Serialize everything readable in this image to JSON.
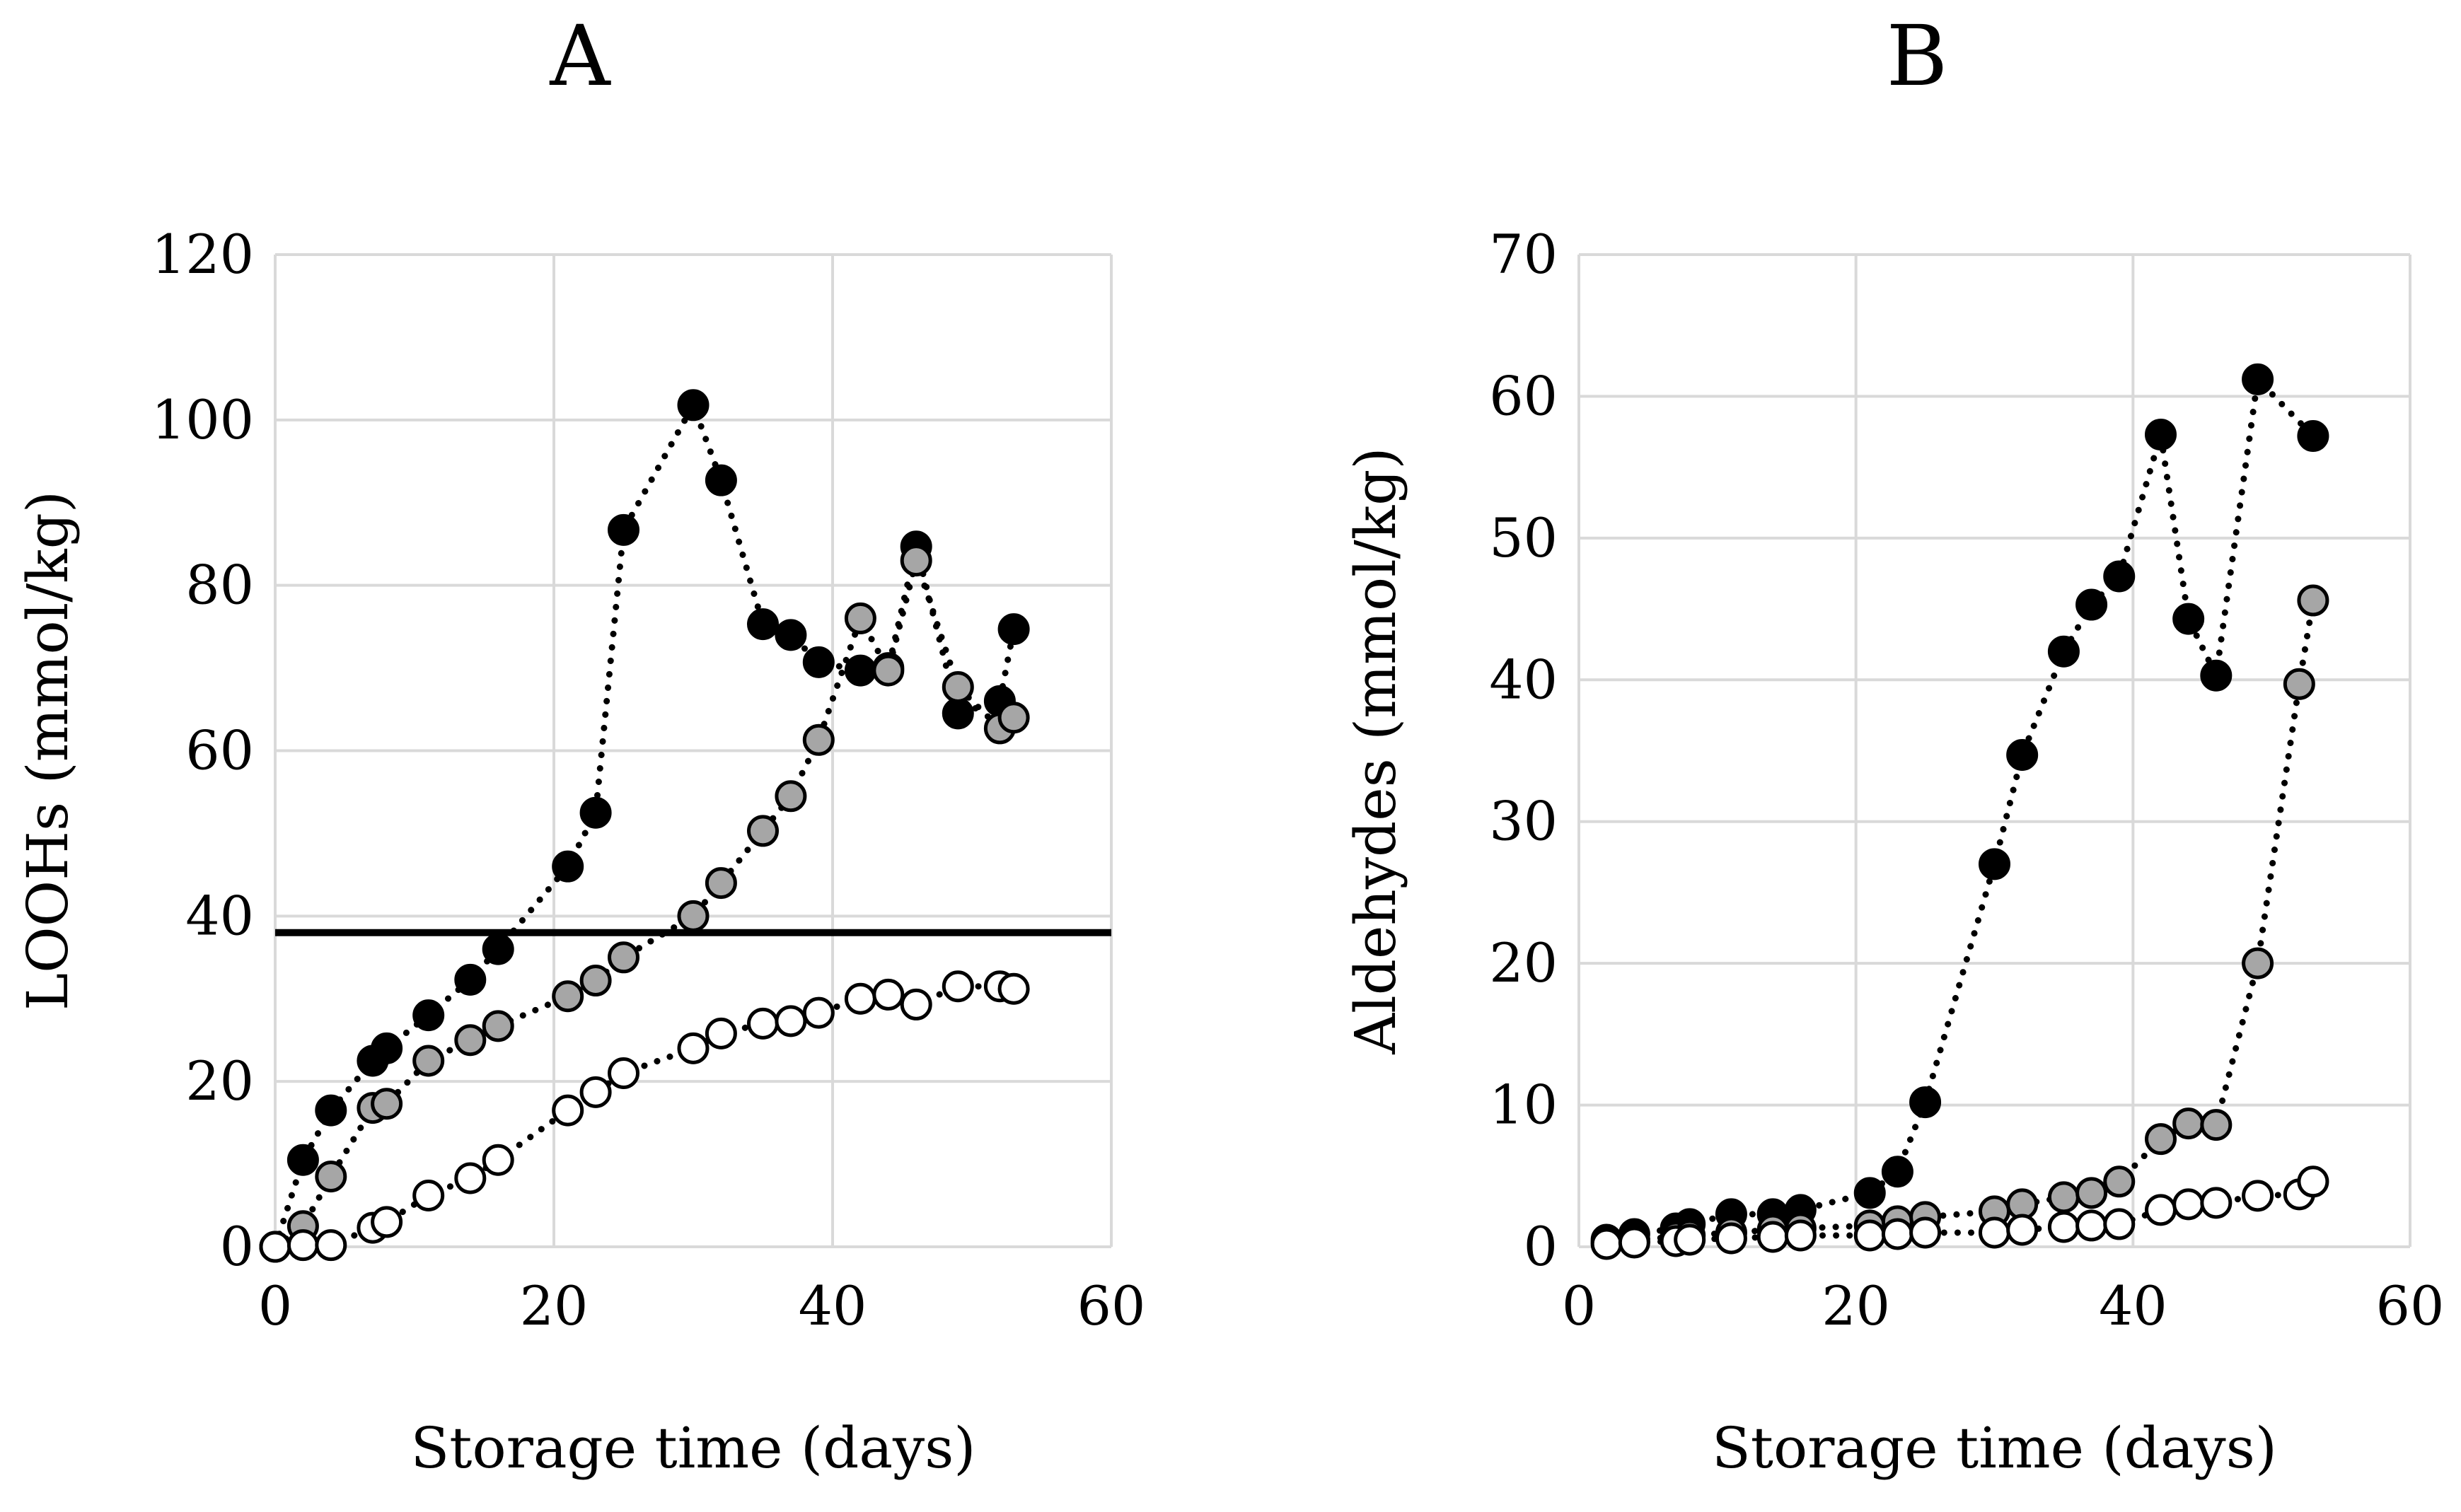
{
  "chart_data": [
    {
      "type": "scatter",
      "title": "A",
      "xlabel": "Storage time (days)",
      "ylabel": "LOOHs (mmol/kg)",
      "xlim": [
        0,
        60
      ],
      "ylim": [
        0,
        120
      ],
      "xticks": [
        0,
        20,
        40,
        60
      ],
      "yticks": [
        0,
        20,
        40,
        60,
        80,
        100,
        120
      ],
      "grid": true,
      "lines": "dotted",
      "reference_line": {
        "y": 38,
        "color": "#000000"
      },
      "series": [
        {
          "marker_fill": "#000000",
          "x": [
            0,
            2,
            4,
            7,
            8,
            11,
            14,
            16,
            21,
            23,
            25,
            30,
            32,
            35,
            37,
            39,
            42,
            44,
            46,
            49,
            52,
            53
          ],
          "y": [
            0,
            10.5,
            16.5,
            22.5,
            24,
            28,
            32.3,
            36,
            46,
            52.5,
            86.7,
            101.8,
            92.7,
            75.3,
            74,
            70.7,
            69.7,
            70,
            84.7,
            64.5,
            66,
            74.7
          ]
        },
        {
          "marker_fill": "#a6a6a6",
          "x": [
            0,
            2,
            4,
            7,
            8,
            11,
            14,
            16,
            21,
            23,
            25,
            30,
            32,
            35,
            37,
            39,
            42,
            44,
            46,
            49,
            52,
            53
          ],
          "y": [
            0,
            2.5,
            8.5,
            16.8,
            17.3,
            22.5,
            25,
            26.7,
            30.3,
            32.2,
            35,
            40,
            44,
            50.3,
            54.5,
            61.3,
            76,
            69.7,
            83,
            67.7,
            62.7,
            64
          ]
        },
        {
          "marker_fill": "#ffffff",
          "x": [
            0,
            2,
            4,
            7,
            8,
            11,
            14,
            16,
            21,
            23,
            25,
            30,
            32,
            35,
            37,
            39,
            42,
            44,
            46,
            49,
            52,
            53
          ],
          "y": [
            0,
            0.2,
            0.2,
            2.3,
            3,
            6.2,
            8.3,
            10.5,
            16.5,
            18.7,
            21,
            24,
            25.8,
            27,
            27.3,
            28.3,
            30,
            30.5,
            29.3,
            31.5,
            31.5,
            31.2
          ]
        }
      ]
    },
    {
      "type": "scatter",
      "title": "B",
      "xlabel": "Storage time (days)",
      "ylabel": "Aldehydes (mmol/kg)",
      "xlim": [
        0,
        60
      ],
      "ylim": [
        0,
        70
      ],
      "xticks": [
        0,
        20,
        40,
        60
      ],
      "yticks": [
        0,
        10,
        20,
        30,
        40,
        50,
        60,
        70
      ],
      "grid": true,
      "lines": "dotted",
      "series": [
        {
          "marker_fill": "#000000",
          "x": [
            2,
            4,
            7,
            8,
            11,
            14,
            16,
            21,
            23,
            25,
            30,
            32,
            35,
            37,
            39,
            42,
            44,
            46,
            49,
            53
          ],
          "y": [
            0.5,
            0.9,
            1.3,
            1.6,
            2.3,
            2.3,
            2.6,
            3.8,
            5.3,
            10.2,
            27,
            34.7,
            42,
            45.3,
            47.3,
            57.3,
            44.3,
            40.3,
            61.2,
            57.2
          ]
        },
        {
          "marker_fill": "#a6a6a6",
          "x": [
            2,
            4,
            7,
            8,
            11,
            14,
            16,
            21,
            23,
            25,
            30,
            32,
            35,
            37,
            39,
            42,
            44,
            46,
            49,
            52,
            53
          ],
          "y": [
            0.3,
            0.5,
            0.7,
            0.8,
            1,
            1.2,
            1.3,
            1.5,
            1.8,
            2.1,
            2.5,
            3,
            3.5,
            3.8,
            4.6,
            7.6,
            8.7,
            8.6,
            20,
            39.7,
            45.6
          ]
        },
        {
          "marker_fill": "#ffffff",
          "x": [
            2,
            4,
            7,
            8,
            11,
            14,
            16,
            21,
            23,
            25,
            30,
            32,
            35,
            37,
            39,
            42,
            44,
            46,
            49,
            52,
            53
          ],
          "y": [
            0.2,
            0.3,
            0.4,
            0.5,
            0.6,
            0.7,
            0.8,
            0.8,
            0.9,
            1,
            1,
            1.2,
            1.4,
            1.5,
            1.6,
            2.6,
            3,
            3.1,
            3.6,
            3.7,
            4.6
          ]
        }
      ]
    }
  ]
}
